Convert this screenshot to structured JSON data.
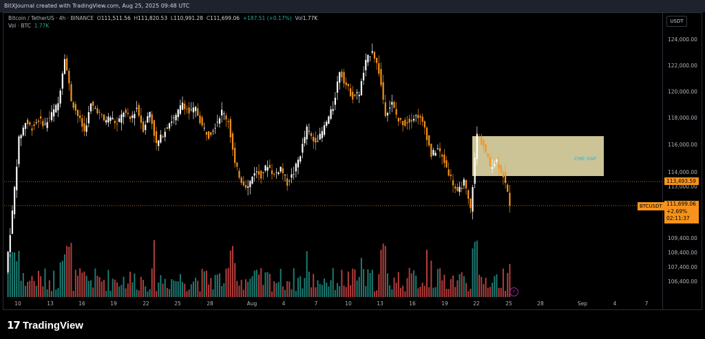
{
  "header": {
    "caption": "BitXJournal created with TradingView.com, Aug 25, 2025 09:48 UTC"
  },
  "legend": {
    "symbol": "Bitcoin / TetherUS · 4h · BINANCE",
    "o_label": "O",
    "o_value": "111,511.56",
    "h_label": "H",
    "h_value": "111,820.53",
    "l_label": "L",
    "l_value": "110,991.28",
    "c_label": "C",
    "c_value": "111,699.06",
    "change": "+187.51 (+0.17%)",
    "vol_label": "Vol",
    "vol_value": "1.77K",
    "vol_line_label": "Vol · BTC",
    "vol_line_value": "1.77K"
  },
  "axis": {
    "currency": "USDT",
    "y_ticks": [
      "124,000.00",
      "122,000.00",
      "120,000.00",
      "118,000.00",
      "116,000.00",
      "114,000.00",
      "113,000.00",
      "109,400.00",
      "108,400.00",
      "107,400.00",
      "106,400.00"
    ],
    "x_ticks": [
      "10",
      "13",
      "16",
      "19",
      "22",
      "25",
      "28",
      "Aug",
      "4",
      "7",
      "10",
      "13",
      "16",
      "19",
      "22",
      "25",
      "28",
      "Sep",
      "4",
      "7"
    ]
  },
  "markers": {
    "level_price": "113,493.59",
    "symbol_tag": "BTCUSDT",
    "last_price": "111,699.06",
    "last_change": "+2.69%",
    "countdown": "02:11:37",
    "gap_label": "CME GAP"
  },
  "colors": {
    "up": "#ffffff",
    "down": "#f7931a",
    "vol_up": "#26a69a",
    "vol_down": "#ef5350",
    "gap": "#f0e6b0",
    "accent": "#f7931a"
  },
  "branding": {
    "logo_mark": "17",
    "logo_text": "TradingView"
  },
  "chart_data": {
    "type": "candlestick",
    "series_close": [
      106500,
      111000,
      116500,
      117800,
      117400,
      118000,
      117600,
      118400,
      119200,
      122800,
      119500,
      118300,
      117100,
      119100,
      118700,
      117900,
      118200,
      117600,
      118600,
      118000,
      118900,
      117300,
      118600,
      116100,
      116900,
      117800,
      118200,
      119300,
      118500,
      118800,
      117500,
      116800,
      117600,
      118600,
      117900,
      114600,
      113400,
      112900,
      114100,
      113800,
      114600,
      113800,
      114400,
      113200,
      114000,
      115400,
      117300,
      116400,
      116700,
      117800,
      118900,
      121700,
      120600,
      119700,
      120000,
      122300,
      123300,
      121600,
      118500,
      119200,
      117900,
      117700,
      118100,
      118300,
      117400,
      115300,
      115800,
      114800,
      113600,
      112400,
      113300,
      111200,
      116900,
      116000,
      114500,
      114900,
      113800,
      111700
    ],
    "annotation": "CME GAP",
    "price_lines": [
      113493.59,
      111699.06
    ]
  }
}
